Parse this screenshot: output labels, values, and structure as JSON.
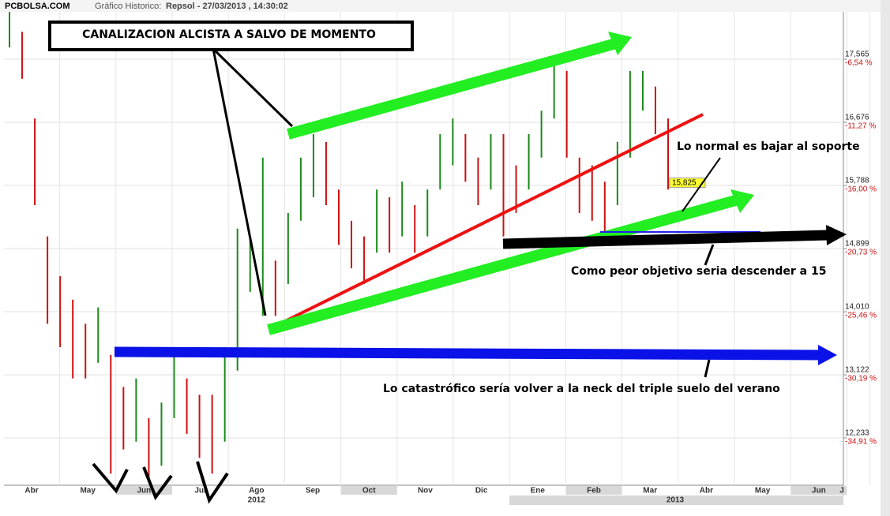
{
  "chart_data": {
    "type": "ohlc",
    "header": {
      "site": "PCBOLSA.COM",
      "label": "Gráfico Historico:",
      "subtitle": "Repsol - 27/03/2013 , 14:30:02"
    },
    "categories": [
      "Abr",
      "May",
      "Jun",
      "Jul",
      "Ago",
      "Sep",
      "Oct",
      "Nov",
      "Dic",
      "Ene",
      "Feb",
      "Mar",
      "Abr",
      "May",
      "Jun",
      "J"
    ],
    "year_labels": [
      "2012",
      "2013"
    ],
    "ylim": [
      11.566,
      18.232
    ],
    "yticks": [
      {
        "value": 12.233,
        "label": "12,233"
      },
      {
        "value": 13.122,
        "label": "13,122"
      },
      {
        "value": 14.01,
        "label": "14,010"
      },
      {
        "value": 14.899,
        "label": "14,899"
      },
      {
        "value": 15.788,
        "label": "15,788"
      },
      {
        "value": 16.676,
        "label": "16,676"
      },
      {
        "value": 17.565,
        "label": "17,565"
      }
    ],
    "y2lim": [
      -38.46,
      -2.99
    ],
    "y2ticks": [
      {
        "value": -34.91,
        "label": "-34,91 %"
      },
      {
        "value": -30.19,
        "label": "-30,19 %"
      },
      {
        "value": -25.46,
        "label": "-25,46 %"
      },
      {
        "value": -20.73,
        "label": "-20,73 %"
      },
      {
        "value": -16.0,
        "label": "-16,00 %"
      },
      {
        "value": -11.27,
        "label": "-11,27 %"
      },
      {
        "value": -6.54,
        "label": "-6,54 %"
      }
    ],
    "high": [
      18.23,
      17.95,
      16.73,
      15.07,
      14.51,
      14.18,
      13.84,
      14.07,
      13.4,
      12.95,
      13.07,
      12.51,
      12.73,
      13.4,
      13.07,
      12.84,
      12.84,
      13.51,
      15.18,
      15.07,
      16.18,
      14.73,
      15.4,
      16.18,
      16.51,
      16.4,
      15.73,
      15.29,
      15.07,
      15.73,
      15.62,
      15.84,
      15.51,
      15.73,
      16.51,
      16.73,
      16.51,
      16.18,
      16.51,
      16.51,
      16.07,
      16.51,
      16.84,
      17.51,
      17.4,
      16.18,
      16.07,
      15.84,
      16.4,
      17.4,
      17.4,
      17.18,
      16.73
    ],
    "low": [
      17.73,
      17.29,
      15.51,
      13.84,
      13.51,
      13.07,
      13.07,
      13.29,
      11.73,
      12.07,
      12.18,
      11.62,
      11.84,
      12.51,
      12.29,
      11.95,
      11.73,
      12.18,
      13.18,
      14.29,
      13.95,
      13.95,
      14.4,
      15.29,
      15.62,
      15.51,
      14.95,
      14.62,
      14.4,
      14.84,
      14.84,
      15.07,
      14.84,
      15.07,
      15.73,
      16.07,
      15.84,
      15.51,
      15.73,
      15.07,
      15.4,
      15.73,
      16.18,
      16.73,
      16.18,
      15.4,
      15.29,
      15.07,
      15.51,
      16.18,
      16.84,
      16.51,
      15.73
    ],
    "up_color": "#1a8a1a",
    "down_color": "#cc1111",
    "last_value": {
      "value": 15.825,
      "label": "15,825"
    },
    "annotations": {
      "box": "CANALIZACION ALCISTA A SALVO DE MOMENTO",
      "support": "Lo normal es bajar al soporte",
      "target": "Como peor objetivo seria descender a 15",
      "neck": "Lo catastrófico sería volver a la neck del triple suelo del verano"
    }
  }
}
